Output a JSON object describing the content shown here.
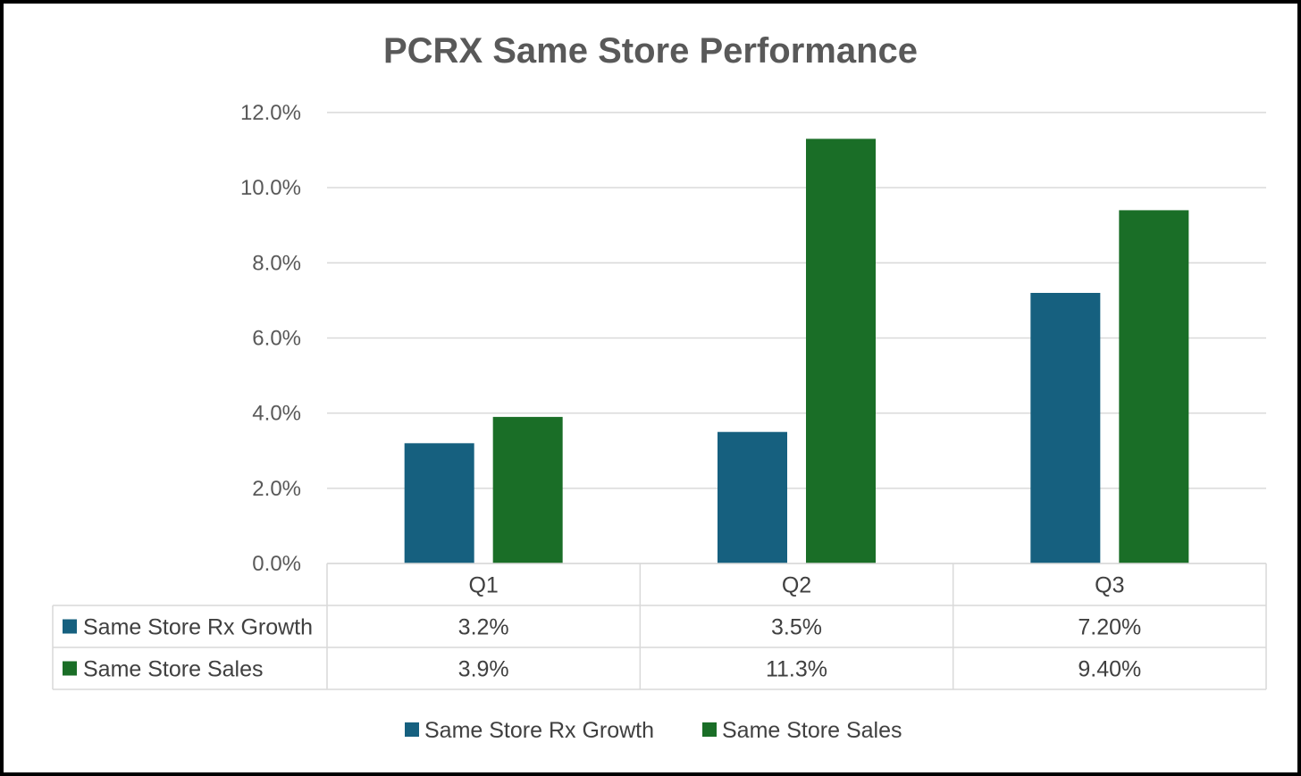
{
  "chart_data": {
    "type": "bar",
    "title": "PCRX Same Store Performance",
    "categories": [
      "Q1",
      "Q2",
      "Q3"
    ],
    "series": [
      {
        "name": "Same Store Rx Growth",
        "values": [
          3.2,
          3.5,
          7.2
        ],
        "labels": [
          "3.2%",
          "3.5%",
          "7.20%"
        ],
        "color": "#16607f"
      },
      {
        "name": "Same Store Sales",
        "values": [
          3.9,
          11.3,
          9.4
        ],
        "labels": [
          "3.9%",
          "11.3%",
          "9.40%"
        ],
        "color": "#1a6e27"
      }
    ],
    "ylim": [
      0,
      12
    ],
    "yticks": [
      0,
      2,
      4,
      6,
      8,
      10,
      12
    ],
    "ytick_labels": [
      "0.0%",
      "2.0%",
      "4.0%",
      "6.0%",
      "8.0%",
      "10.0%",
      "12.0%"
    ],
    "xlabel": "",
    "ylabel": "",
    "grid": true,
    "data_table": true,
    "legend_position": "bottom"
  }
}
